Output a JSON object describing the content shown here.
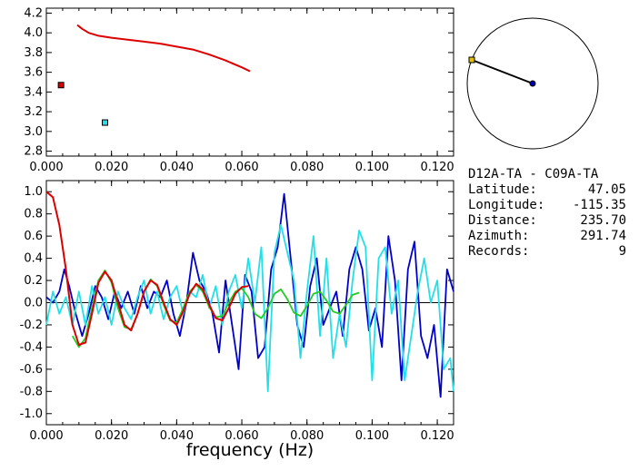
{
  "info": {
    "station_pair": "D12A-TA - C09A-TA",
    "rows": [
      {
        "label": "Latitude:",
        "value": "47.05"
      },
      {
        "label": "Longitude:",
        "value": "-115.35"
      },
      {
        "label": "Distance:",
        "value": "235.70"
      },
      {
        "label": "Azimuth:",
        "value": "291.74"
      },
      {
        "label": "Records:",
        "value": "9"
      }
    ]
  },
  "colors": {
    "red": "#dd0000",
    "blue": "#0000cc",
    "cyan": "#22e0e8",
    "green": "#22cc22",
    "axis": "#000000"
  },
  "chart_data": [
    {
      "type": "line",
      "xlabel": "",
      "ylabel": "",
      "xlim": [
        0.0,
        0.125
      ],
      "ylim": [
        2.75,
        4.25
      ],
      "xticks": [
        "0.000",
        "0.020",
        "0.040",
        "0.060",
        "0.080",
        "0.100",
        "0.120"
      ],
      "yticks": [
        "2.8",
        "3.0",
        "3.2",
        "3.4",
        "3.6",
        "3.8",
        "4.0",
        "4.2"
      ],
      "series": [
        {
          "color": "red",
          "x": [
            0.0095,
            0.011,
            0.013,
            0.016,
            0.02,
            0.025,
            0.03,
            0.035,
            0.04,
            0.045,
            0.05,
            0.055,
            0.06,
            0.0625
          ],
          "y": [
            4.08,
            4.04,
            4.0,
            3.97,
            3.95,
            3.93,
            3.91,
            3.89,
            3.86,
            3.83,
            3.78,
            3.72,
            3.65,
            3.61
          ]
        }
      ],
      "markers": [
        {
          "x": 0.0045,
          "y": 3.47,
          "color": "red"
        },
        {
          "x": 0.018,
          "y": 3.09,
          "color": "cyan"
        }
      ]
    },
    {
      "type": "line",
      "xlabel": "frequency (Hz)",
      "ylabel": "",
      "xlim": [
        0.0,
        0.125
      ],
      "ylim": [
        -1.1,
        1.1
      ],
      "xticks": [
        "0.000",
        "0.020",
        "0.040",
        "0.060",
        "0.080",
        "0.100",
        "0.120"
      ],
      "yticks": [
        "-1.0",
        "-0.8",
        "-0.6",
        "-0.4",
        "-0.2",
        "0.0",
        "0.2",
        "0.4",
        "0.6",
        "0.8",
        "1.0"
      ],
      "zero_line": true,
      "series": [
        {
          "color": "blue",
          "x": [
            0.0,
            0.002,
            0.004,
            0.0055,
            0.007,
            0.009,
            0.011,
            0.013,
            0.015,
            0.017,
            0.019,
            0.021,
            0.023,
            0.025,
            0.027,
            0.029,
            0.031,
            0.033,
            0.035,
            0.037,
            0.039,
            0.041,
            0.043,
            0.045,
            0.047,
            0.049,
            0.051,
            0.053,
            0.055,
            0.057,
            0.059,
            0.061,
            0.063,
            0.065,
            0.067,
            0.069,
            0.071,
            0.073,
            0.075,
            0.077,
            0.079,
            0.081,
            0.083,
            0.085,
            0.087,
            0.089,
            0.091,
            0.093,
            0.095,
            0.097,
            0.099,
            0.101,
            0.103,
            0.105,
            0.107,
            0.109,
            0.111,
            0.113,
            0.115,
            0.117,
            0.119,
            0.121,
            0.123,
            0.125
          ],
          "y": [
            0.05,
            0.0,
            0.1,
            0.3,
            0.15,
            -0.1,
            -0.3,
            -0.1,
            0.15,
            0.05,
            -0.15,
            0.1,
            -0.05,
            0.1,
            -0.1,
            0.15,
            -0.05,
            0.1,
            0.05,
            0.2,
            -0.1,
            -0.3,
            0.0,
            0.45,
            0.2,
            0.1,
            -0.1,
            -0.45,
            0.2,
            -0.2,
            -0.6,
            0.25,
            0.1,
            -0.5,
            -0.4,
            0.3,
            0.5,
            0.98,
            0.4,
            -0.2,
            -0.4,
            0.15,
            0.4,
            -0.2,
            -0.05,
            0.1,
            -0.3,
            0.3,
            0.5,
            0.3,
            -0.25,
            -0.05,
            -0.4,
            0.6,
            0.2,
            -0.7,
            0.3,
            0.55,
            -0.3,
            -0.5,
            -0.2,
            -0.85,
            0.3,
            0.1
          ]
        },
        {
          "color": "cyan",
          "x": [
            0.0,
            0.002,
            0.004,
            0.006,
            0.008,
            0.01,
            0.012,
            0.014,
            0.016,
            0.018,
            0.02,
            0.022,
            0.024,
            0.026,
            0.028,
            0.03,
            0.032,
            0.034,
            0.036,
            0.038,
            0.04,
            0.042,
            0.044,
            0.046,
            0.048,
            0.05,
            0.052,
            0.054,
            0.056,
            0.058,
            0.06,
            0.062,
            0.064,
            0.066,
            0.068,
            0.07,
            0.072,
            0.074,
            0.076,
            0.078,
            0.08,
            0.082,
            0.084,
            0.086,
            0.088,
            0.09,
            0.092,
            0.094,
            0.096,
            0.098,
            0.1,
            0.102,
            0.104,
            0.106,
            0.108,
            0.11,
            0.112,
            0.114,
            0.116,
            0.118,
            0.12,
            0.122,
            0.124,
            0.125
          ],
          "y": [
            -0.2,
            0.1,
            -0.1,
            0.05,
            -0.2,
            0.1,
            -0.2,
            0.15,
            -0.1,
            0.05,
            -0.2,
            0.1,
            -0.05,
            -0.15,
            0.05,
            0.2,
            -0.1,
            0.1,
            -0.15,
            0.05,
            0.15,
            -0.1,
            0.1,
            0.05,
            0.25,
            -0.05,
            0.15,
            -0.2,
            0.1,
            0.25,
            -0.05,
            0.4,
            0.0,
            0.5,
            -0.8,
            0.45,
            0.7,
            0.45,
            0.2,
            -0.5,
            0.1,
            0.6,
            -0.3,
            0.4,
            -0.5,
            -0.1,
            -0.4,
            0.2,
            0.65,
            0.5,
            -0.7,
            0.4,
            0.5,
            -0.1,
            0.2,
            -0.7,
            -0.3,
            0.1,
            0.4,
            0.0,
            0.2,
            -0.6,
            -0.5,
            -0.8
          ]
        },
        {
          "color": "green",
          "x": [
            0.008,
            0.01,
            0.012,
            0.014,
            0.016,
            0.018,
            0.02,
            0.022,
            0.024,
            0.026,
            0.028,
            0.03,
            0.032,
            0.034,
            0.036,
            0.038,
            0.04,
            0.042,
            0.044,
            0.046,
            0.048,
            0.05,
            0.052,
            0.054,
            0.056,
            0.058,
            0.06,
            0.062,
            0.064,
            0.066,
            0.068,
            0.07,
            0.072,
            0.074,
            0.076,
            0.078,
            0.08,
            0.082,
            0.084,
            0.086,
            0.088,
            0.09,
            0.092,
            0.094,
            0.096
          ],
          "y": [
            -0.3,
            -0.4,
            -0.32,
            -0.05,
            0.2,
            0.29,
            0.18,
            -0.05,
            -0.22,
            -0.24,
            -0.1,
            0.1,
            0.21,
            0.15,
            -0.02,
            -0.16,
            -0.18,
            -0.05,
            0.1,
            0.16,
            0.1,
            -0.04,
            -0.13,
            -0.12,
            0.0,
            0.1,
            0.13,
            0.05,
            -0.1,
            -0.14,
            -0.05,
            0.08,
            0.12,
            0.03,
            -0.09,
            -0.12,
            -0.03,
            0.08,
            0.1,
            0.02,
            -0.08,
            -0.1,
            -0.02,
            0.07,
            0.09
          ]
        },
        {
          "color": "red",
          "x": [
            0.0,
            0.002,
            0.004,
            0.006,
            0.008,
            0.01,
            0.012,
            0.014,
            0.016,
            0.018,
            0.02,
            0.022,
            0.024,
            0.026,
            0.028,
            0.03,
            0.032,
            0.034,
            0.036,
            0.038,
            0.04,
            0.042,
            0.044,
            0.046,
            0.048,
            0.05,
            0.052,
            0.054,
            0.056,
            0.058,
            0.06,
            0.062
          ],
          "y": [
            1.0,
            0.95,
            0.7,
            0.3,
            -0.2,
            -0.38,
            -0.36,
            -0.1,
            0.18,
            0.28,
            0.2,
            0.0,
            -0.2,
            -0.25,
            -0.1,
            0.1,
            0.2,
            0.16,
            0.0,
            -0.15,
            -0.2,
            -0.08,
            0.08,
            0.17,
            0.12,
            -0.02,
            -0.14,
            -0.16,
            -0.05,
            0.08,
            0.14,
            0.15
          ]
        }
      ]
    }
  ],
  "map": {
    "station_a_color": "#e0c000",
    "station_b_color": "#0000aa"
  }
}
